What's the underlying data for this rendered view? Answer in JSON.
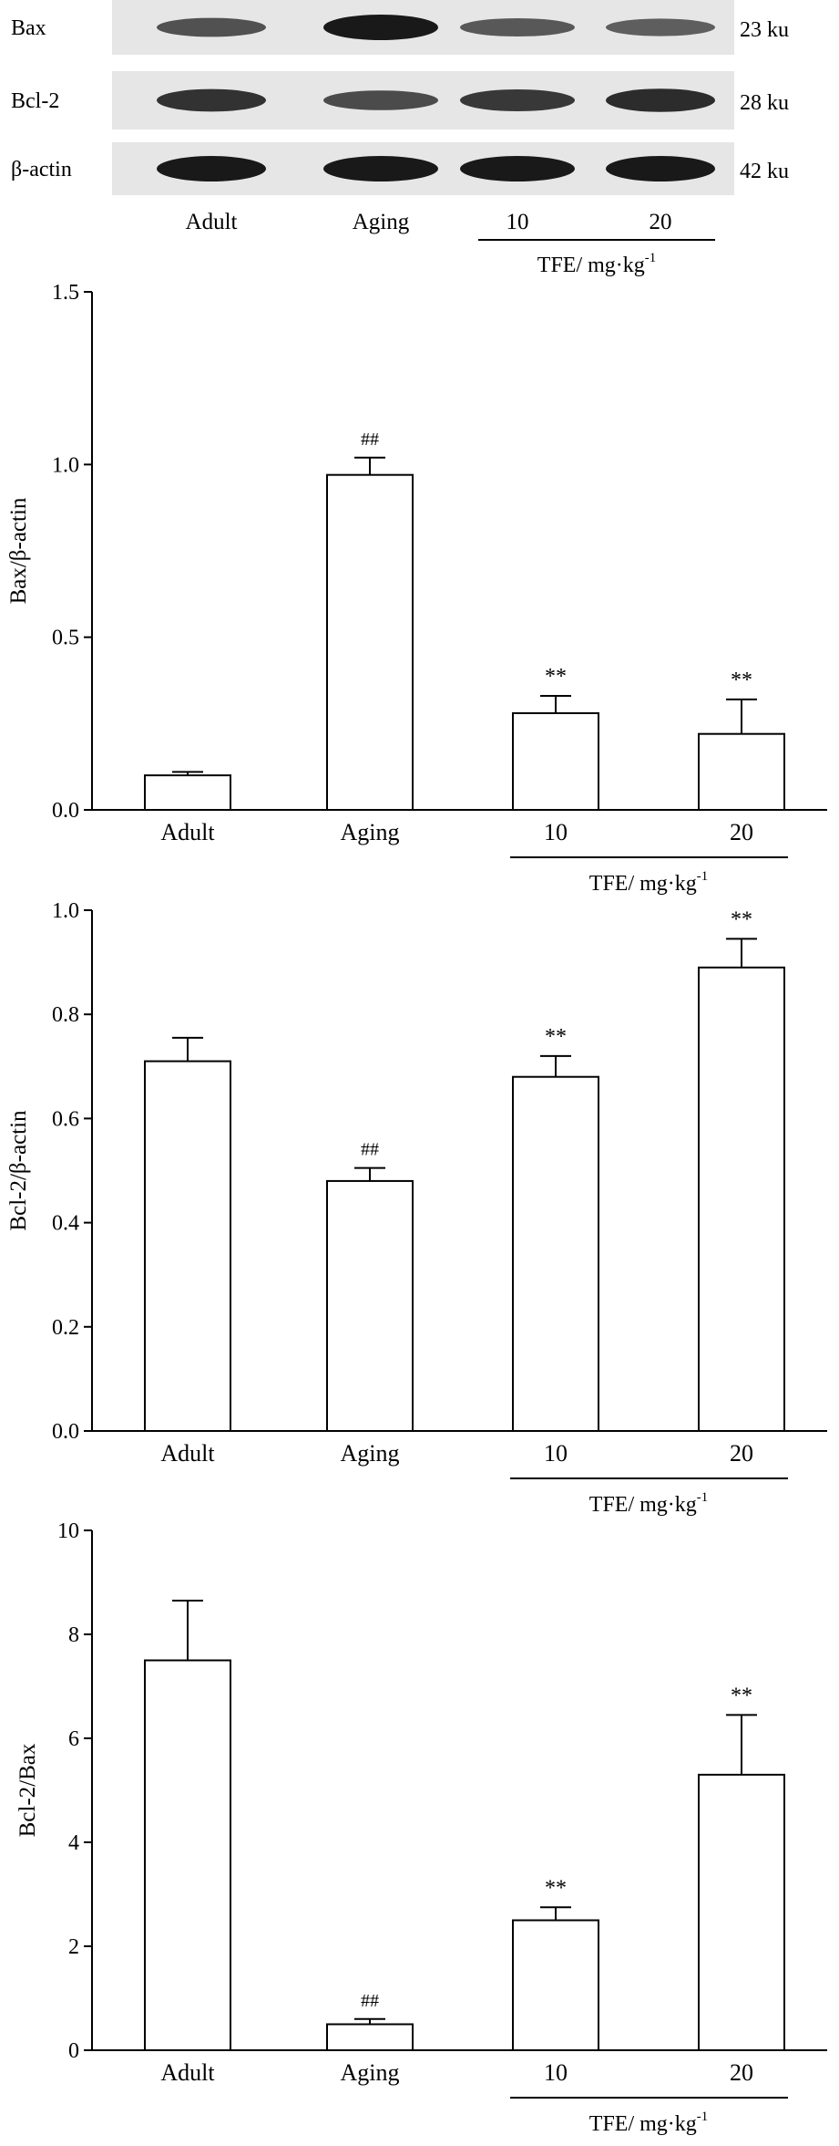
{
  "blot": {
    "rows": [
      {
        "protein": "Bax",
        "size": "23 ku",
        "intensities": [
          0.55,
          1.0,
          0.5,
          0.45
        ]
      },
      {
        "protein": "Bcl-2",
        "size": "28 ku",
        "intensities": [
          0.8,
          0.6,
          0.75,
          0.85
        ]
      },
      {
        "protein": "β-actin",
        "size": "42 ku",
        "intensities": [
          1.0,
          1.0,
          1.0,
          1.0
        ]
      }
    ],
    "lanes": [
      "Adult",
      "Aging",
      "10",
      "20"
    ],
    "group_label": "TFE/ mg·kg",
    "group_label_sup": "-1"
  },
  "chart_data": [
    {
      "type": "bar",
      "categories": [
        "Adult",
        "Aging",
        "10",
        "20"
      ],
      "values": [
        0.1,
        0.97,
        0.28,
        0.22
      ],
      "errors": [
        0.01,
        0.05,
        0.05,
        0.1
      ],
      "annotations": [
        "",
        "##",
        "**",
        "**"
      ],
      "ylabel": "Bax/β-actin",
      "ylim": [
        0,
        1.5
      ],
      "yticks": [
        "0.0",
        "0.5",
        "1.0",
        "1.5"
      ],
      "group_label": "TFE/ mg·kg",
      "group_label_sup": "-1"
    },
    {
      "type": "bar",
      "categories": [
        "Adult",
        "Aging",
        "10",
        "20"
      ],
      "values": [
        0.71,
        0.48,
        0.68,
        0.89
      ],
      "errors": [
        0.045,
        0.025,
        0.04,
        0.055
      ],
      "annotations": [
        "",
        "##",
        "**",
        "**"
      ],
      "ylabel": "Bcl-2/β-actin",
      "ylim": [
        0,
        1.0
      ],
      "yticks": [
        "0.0",
        "0.2",
        "0.4",
        "0.6",
        "0.8",
        "1.0"
      ],
      "group_label": "TFE/ mg·kg",
      "group_label_sup": "-1"
    },
    {
      "type": "bar",
      "categories": [
        "Adult",
        "Aging",
        "10",
        "20"
      ],
      "values": [
        7.5,
        0.5,
        2.5,
        5.3
      ],
      "errors": [
        1.15,
        0.1,
        0.25,
        1.15
      ],
      "annotations": [
        "",
        "##",
        "**",
        "**"
      ],
      "ylabel": "Bcl-2/Bax",
      "ylim": [
        0,
        10
      ],
      "yticks": [
        "0",
        "2",
        "4",
        "6",
        "8",
        "10"
      ],
      "group_label": "TFE/ mg·kg",
      "group_label_sup": "-1"
    }
  ]
}
